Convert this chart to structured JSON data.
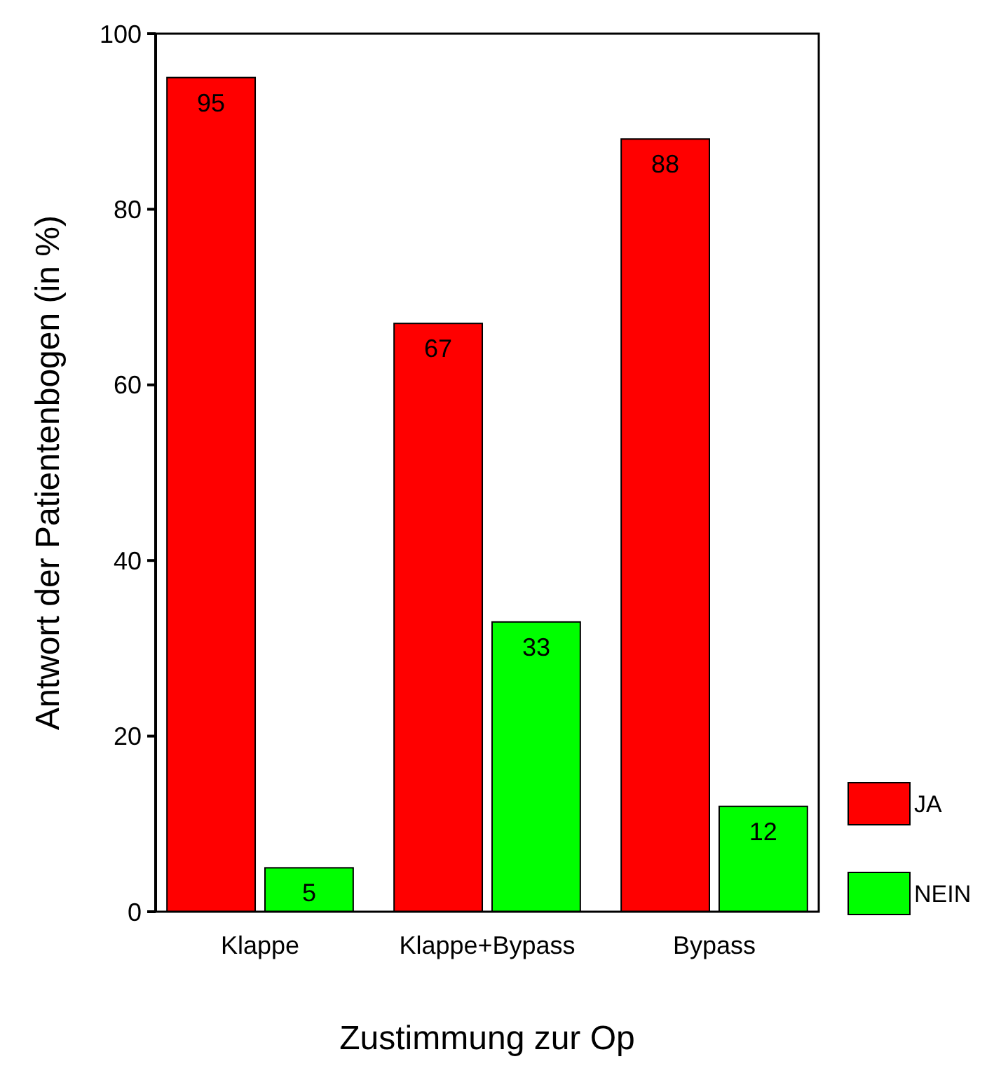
{
  "chart_data": {
    "type": "bar",
    "xlabel": "Zustimmung zur Op",
    "ylabel": "Antwort der Patientenbogen (in %)",
    "categories": [
      "Klappe",
      "Klappe+Bypass",
      "Bypass"
    ],
    "series": [
      {
        "name": "JA",
        "color": "#ff0000",
        "values": [
          95,
          67,
          88
        ]
      },
      {
        "name": "NEIN",
        "color": "#00ff00",
        "values": [
          5,
          33,
          12
        ]
      }
    ],
    "ylim": [
      0,
      100
    ],
    "yticks": [
      0,
      20,
      40,
      60,
      80,
      100
    ],
    "data_labels": true,
    "legend": "bottom right",
    "grid": false
  }
}
